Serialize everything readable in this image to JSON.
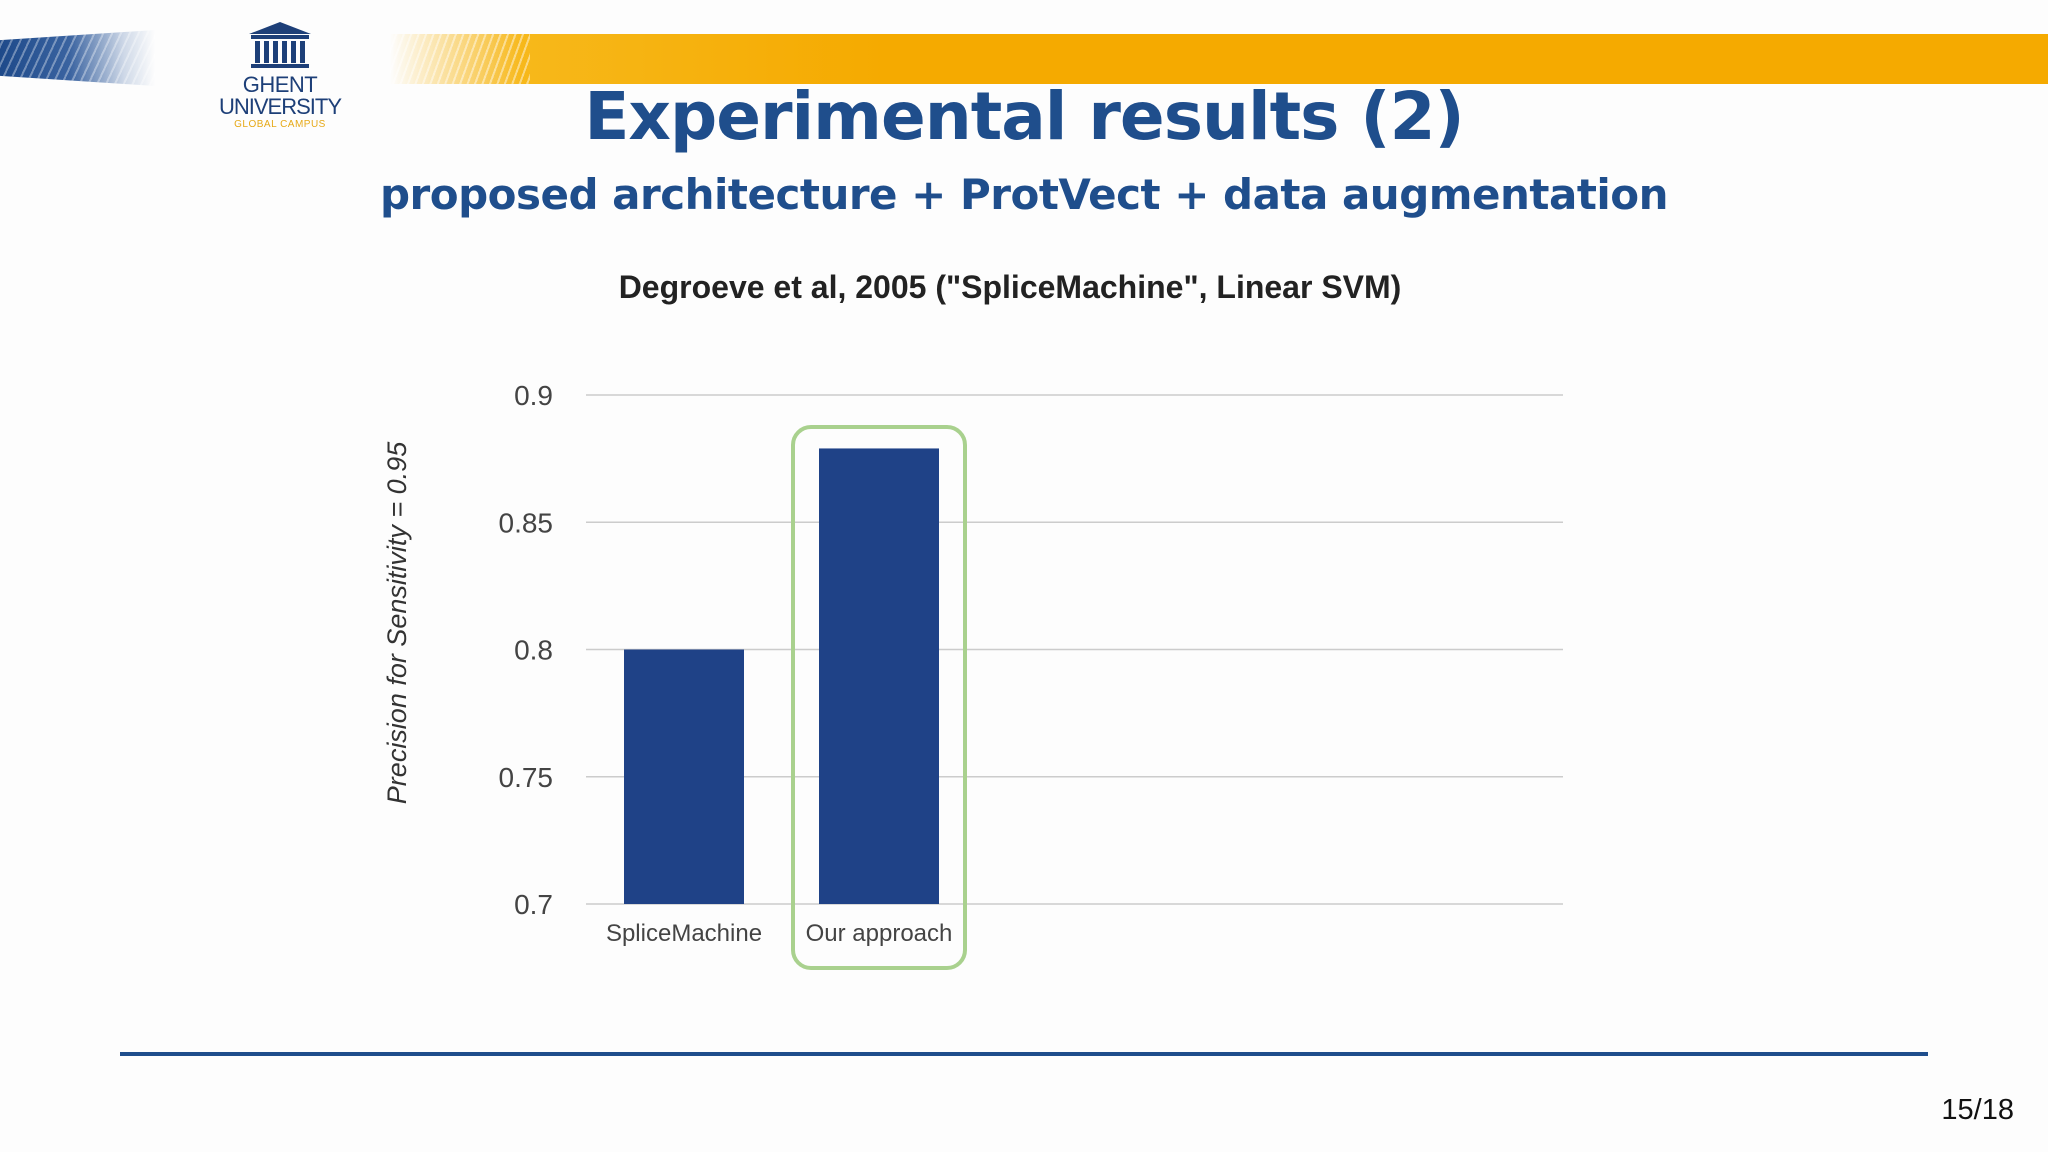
{
  "slide": {
    "title": "Experimental results (2)",
    "subtitle": "proposed architecture + ProtVect + data augmentation",
    "page_number": "15/18",
    "logo": {
      "line1": "GHENT",
      "line2": "UNIVERSITY",
      "line3": "GLOBAL CAMPUS"
    }
  },
  "colors": {
    "title": "#1f4e8c",
    "bar": "#1f4287",
    "highlight_box": "#a9d18e",
    "stripe_yellow": "#f5aa00",
    "grid": "#cccccc"
  },
  "chart_data": {
    "type": "bar",
    "title": "Degroeve et al, 2005 (\"SpliceMachine\", Linear SVM)",
    "xlabel": "",
    "ylabel": "Precision for Sensitivity = 0.95",
    "categories": [
      "SpliceMachine",
      "Our approach"
    ],
    "values": [
      0.8,
      0.879
    ],
    "ylim": [
      0.7,
      0.9
    ],
    "yticks": [
      "0.7",
      "0.75",
      "0.8",
      "0.85",
      "0.9"
    ],
    "grid": true,
    "highlighted_category": "Our approach"
  }
}
